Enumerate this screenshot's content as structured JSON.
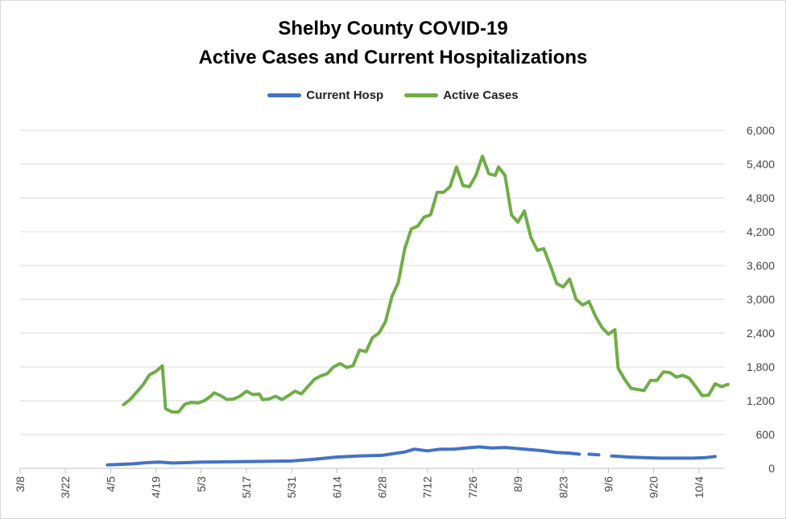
{
  "chart_data": {
    "type": "line",
    "title": "Shelby County COVID-19",
    "subtitle": "Active Cases and Current Hospitalizations",
    "xlabel": "",
    "ylabel": "",
    "ylim": [
      0,
      6000
    ],
    "y_ticks": [
      "0",
      "600",
      "1,200",
      "1,800",
      "2,400",
      "3,000",
      "3,600",
      "4,200",
      "4,800",
      "5,400",
      "6,000"
    ],
    "y_axis_side": "right",
    "x_ticks": [
      "3/8",
      "3/22",
      "4/5",
      "4/19",
      "5/3",
      "5/17",
      "5/31",
      "6/14",
      "6/28",
      "7/12",
      "7/26",
      "8/9",
      "8/23",
      "9/6",
      "9/20",
      "10/4"
    ],
    "x_start": "3/8",
    "x_tick_interval_days": 14,
    "grid": true,
    "legend_position": "top",
    "series": [
      {
        "name": "Current Hosp",
        "color": "#4472c4",
        "points": [
          [
            "4/4",
            60
          ],
          [
            "4/8",
            70
          ],
          [
            "4/12",
            80
          ],
          [
            "4/16",
            100
          ],
          [
            "4/20",
            110
          ],
          [
            "4/24",
            95
          ],
          [
            "4/28",
            100
          ],
          [
            "5/3",
            110
          ],
          [
            "5/10",
            115
          ],
          [
            "5/17",
            120
          ],
          [
            "5/24",
            125
          ],
          [
            "5/31",
            130
          ],
          [
            "6/7",
            160
          ],
          [
            "6/14",
            200
          ],
          [
            "6/21",
            220
          ],
          [
            "6/28",
            230
          ],
          [
            "7/5",
            290
          ],
          [
            "7/8",
            340
          ],
          [
            "7/12",
            310
          ],
          [
            "7/16",
            340
          ],
          [
            "7/20",
            340
          ],
          [
            "7/24",
            360
          ],
          [
            "7/28",
            380
          ],
          [
            "8/1",
            360
          ],
          [
            "8/5",
            370
          ],
          [
            "8/9",
            350
          ],
          [
            "8/13",
            330
          ],
          [
            "8/17",
            310
          ],
          [
            "8/21",
            280
          ],
          [
            "8/25",
            270
          ],
          [
            "8/28",
            250
          ],
          [
            null,
            null
          ],
          [
            "8/31",
            250
          ],
          [
            "9/3",
            240
          ],
          [
            null,
            null
          ],
          [
            "9/7",
            220
          ],
          [
            "9/12",
            200
          ],
          [
            "9/17",
            190
          ],
          [
            "9/22",
            180
          ],
          [
            "9/27",
            180
          ],
          [
            "10/2",
            180
          ],
          [
            "10/6",
            190
          ],
          [
            "10/9",
            210
          ]
        ]
      },
      {
        "name": "Active Cases",
        "color": "#70ad47",
        "points": [
          [
            "4/9",
            1130
          ],
          [
            "4/11",
            1220
          ],
          [
            "4/13",
            1350
          ],
          [
            "4/15",
            1480
          ],
          [
            "4/17",
            1660
          ],
          [
            "4/19",
            1720
          ],
          [
            "4/21",
            1820
          ],
          [
            "4/22",
            1060
          ],
          [
            "4/24",
            1000
          ],
          [
            "4/26",
            1000
          ],
          [
            "4/28",
            1140
          ],
          [
            "4/30",
            1170
          ],
          [
            "5/2",
            1160
          ],
          [
            "5/4",
            1200
          ],
          [
            "5/6",
            1280
          ],
          [
            "5/7",
            1340
          ],
          [
            "5/9",
            1290
          ],
          [
            "5/11",
            1220
          ],
          [
            "5/13",
            1230
          ],
          [
            "5/15",
            1280
          ],
          [
            "5/17",
            1370
          ],
          [
            "5/19",
            1310
          ],
          [
            "5/21",
            1320
          ],
          [
            "5/22",
            1220
          ],
          [
            "5/24",
            1230
          ],
          [
            "5/26",
            1280
          ],
          [
            "5/28",
            1220
          ],
          [
            "5/30",
            1290
          ],
          [
            "6/1",
            1370
          ],
          [
            "6/3",
            1320
          ],
          [
            "6/5",
            1450
          ],
          [
            "6/7",
            1580
          ],
          [
            "6/9",
            1640
          ],
          [
            "6/11",
            1680
          ],
          [
            "6/13",
            1800
          ],
          [
            "6/15",
            1860
          ],
          [
            "6/17",
            1790
          ],
          [
            "6/19",
            1820
          ],
          [
            "6/21",
            2100
          ],
          [
            "6/23",
            2070
          ],
          [
            "6/25",
            2320
          ],
          [
            "6/27",
            2400
          ],
          [
            "6/29",
            2600
          ],
          [
            "7/1",
            3050
          ],
          [
            "7/3",
            3300
          ],
          [
            "7/5",
            3900
          ],
          [
            "7/7",
            4250
          ],
          [
            "7/9",
            4300
          ],
          [
            "7/11",
            4460
          ],
          [
            "7/13",
            4500
          ],
          [
            "7/15",
            4900
          ],
          [
            "7/17",
            4900
          ],
          [
            "7/19",
            5000
          ],
          [
            "7/21",
            5350
          ],
          [
            "7/23",
            5020
          ],
          [
            "7/25",
            5000
          ],
          [
            "7/27",
            5200
          ],
          [
            "7/29",
            5540
          ],
          [
            "7/31",
            5230
          ],
          [
            "8/2",
            5200
          ],
          [
            "8/3",
            5350
          ],
          [
            "8/5",
            5200
          ],
          [
            "8/7",
            4500
          ],
          [
            "8/9",
            4370
          ],
          [
            "8/11",
            4570
          ],
          [
            "8/13",
            4100
          ],
          [
            "8/15",
            3870
          ],
          [
            "8/17",
            3900
          ],
          [
            "8/19",
            3600
          ],
          [
            "8/21",
            3280
          ],
          [
            "8/23",
            3220
          ],
          [
            "8/25",
            3360
          ],
          [
            "8/27",
            3000
          ],
          [
            "8/29",
            2900
          ],
          [
            "8/31",
            2960
          ],
          [
            "9/2",
            2700
          ],
          [
            "9/4",
            2500
          ],
          [
            "9/6",
            2380
          ],
          [
            "9/8",
            2460
          ],
          [
            "9/9",
            1780
          ],
          [
            "9/11",
            1580
          ],
          [
            "9/13",
            1420
          ],
          [
            "9/15",
            1400
          ],
          [
            "9/17",
            1380
          ],
          [
            "9/19",
            1560
          ],
          [
            "9/21",
            1560
          ],
          [
            "9/23",
            1710
          ],
          [
            "9/25",
            1700
          ],
          [
            "9/27",
            1620
          ],
          [
            "9/29",
            1650
          ],
          [
            "10/1",
            1600
          ],
          [
            "10/3",
            1450
          ],
          [
            "10/5",
            1290
          ],
          [
            "10/7",
            1300
          ],
          [
            "10/9",
            1500
          ],
          [
            "10/11",
            1450
          ],
          [
            "10/13",
            1490
          ]
        ]
      }
    ]
  }
}
